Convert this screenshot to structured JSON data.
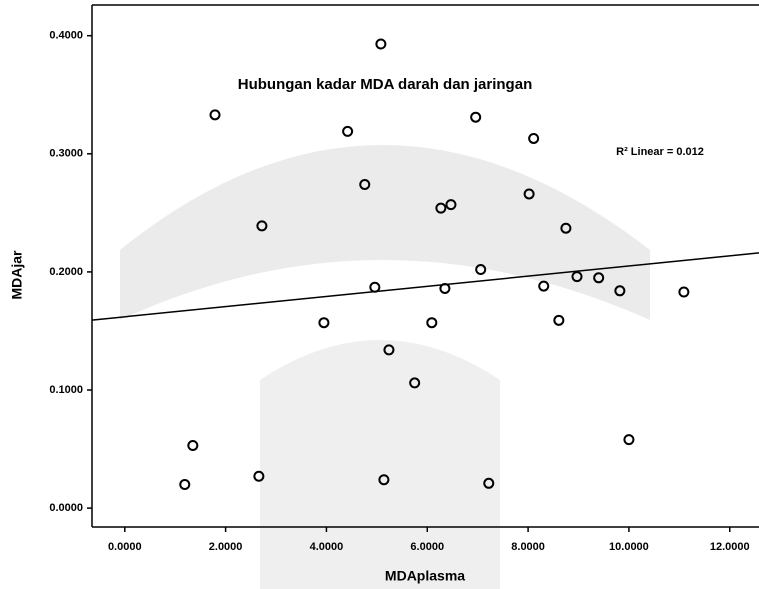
{
  "chart_data": {
    "type": "scatter",
    "title": "Hubungan  kadar MDA darah dan jaringan",
    "annotation": "R² Linear = 0.012",
    "x_label": "MDAplasma",
    "y_label": "MDAjar",
    "x": [
      5.08,
      1.79,
      4.42,
      6.96,
      8.11,
      4.76,
      2.72,
      6.27,
      6.47,
      8.02,
      8.75,
      7.06,
      4.96,
      6.35,
      8.31,
      8.97,
      9.4,
      9.82,
      11.09,
      3.95,
      6.09,
      8.61,
      5.24,
      5.75,
      1.35,
      10.0,
      2.66,
      1.19,
      5.14,
      7.22
    ],
    "values": [
      0.393,
      0.333,
      0.319,
      0.331,
      0.313,
      0.274,
      0.239,
      0.254,
      0.257,
      0.266,
      0.237,
      0.202,
      0.187,
      0.186,
      0.188,
      0.196,
      0.195,
      0.184,
      0.183,
      0.157,
      0.157,
      0.159,
      0.134,
      0.106,
      0.053,
      0.058,
      0.027,
      0.02,
      0.024,
      0.021
    ],
    "fit": {
      "intercept": 0.162,
      "slope": 0.0043
    },
    "color": "#000000",
    "xlim": [
      -0.65,
      12.58
    ],
    "ylim": [
      -0.016,
      0.426
    ],
    "xticks": [
      {
        "value": 0,
        "label": "0.0000"
      },
      {
        "value": 2,
        "label": "2.0000"
      },
      {
        "value": 4,
        "label": "4.0000"
      },
      {
        "value": 6,
        "label": "6.0000"
      },
      {
        "value": 8,
        "label": "8.0000"
      },
      {
        "value": 10,
        "label": "10.0000"
      },
      {
        "value": 12,
        "label": "12.0000"
      }
    ],
    "yticks": [
      {
        "value": 0,
        "label": "0.0000"
      },
      {
        "value": 0.1,
        "label": "0.1000"
      },
      {
        "value": 0.2,
        "label": "0.2000"
      },
      {
        "value": 0.3,
        "label": "0.3000"
      },
      {
        "value": 0.4,
        "label": "0.4000"
      }
    ]
  }
}
